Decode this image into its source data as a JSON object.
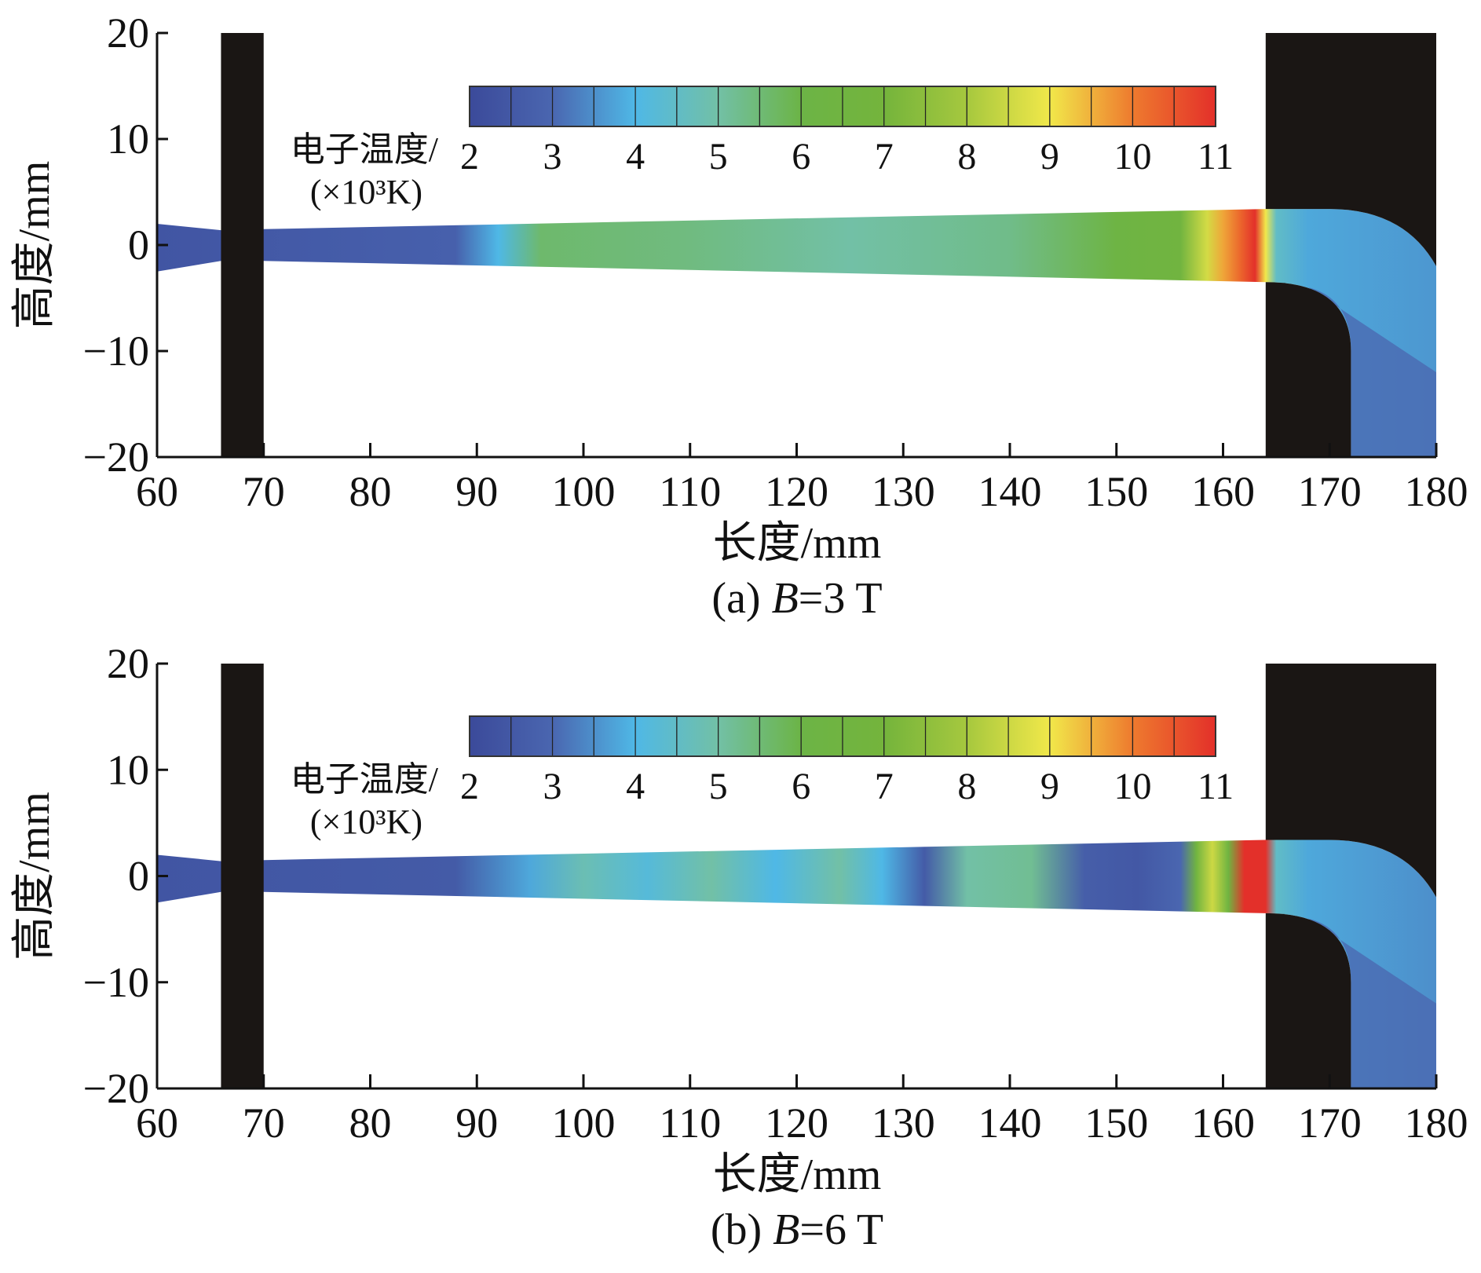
{
  "chart_data": [
    {
      "type": "heatmap",
      "panel_label": "(a) ",
      "caption_var": "B",
      "caption_rest": "=3 T",
      "xlabel": "长度/mm",
      "ylabel": "高度/mm",
      "xlim": [
        60,
        180
      ],
      "ylim": [
        -20,
        20
      ],
      "xticks": [
        "60",
        "70",
        "80",
        "90",
        "100",
        "110",
        "120",
        "130",
        "140",
        "150",
        "160",
        "170",
        "180"
      ],
      "yticks": [
        "20",
        "10",
        "0",
        "−10",
        "−20"
      ],
      "colorbar": {
        "label_line1": "电子温度/",
        "label_line2": "(×10³K)",
        "ticks": [
          "2",
          "3",
          "4",
          "5",
          "6",
          "7",
          "8",
          "9",
          "10",
          "11"
        ],
        "range": [
          2,
          11
        ]
      },
      "electrodes": [
        {
          "x": [
            66,
            70
          ]
        },
        {
          "x": [
            164,
            180
          ]
        }
      ],
      "temperature_profile": {
        "x": [
          60,
          88,
          92,
          96,
          110,
          125,
          140,
          150,
          156,
          158.5,
          160,
          161.5,
          163,
          164,
          165,
          168,
          180
        ],
        "T": [
          2.4,
          2.8,
          4.0,
          5.6,
          5.4,
          5.0,
          5.3,
          6.2,
          6.6,
          8.6,
          9.6,
          10.2,
          11.0,
          9.0,
          4.5,
          3.8,
          3.6
        ]
      }
    },
    {
      "type": "heatmap",
      "panel_label": "(b) ",
      "caption_var": "B",
      "caption_rest": "=6 T",
      "xlabel": "长度/mm",
      "ylabel": "高度/mm",
      "xlim": [
        60,
        180
      ],
      "ylim": [
        -20,
        20
      ],
      "xticks": [
        "60",
        "70",
        "80",
        "90",
        "100",
        "110",
        "120",
        "130",
        "140",
        "150",
        "160",
        "170",
        "180"
      ],
      "yticks": [
        "20",
        "10",
        "0",
        "−10",
        "−20"
      ],
      "colorbar": {
        "label_line1": "电子温度/",
        "label_line2": "(×10³K)",
        "ticks": [
          "2",
          "3",
          "4",
          "5",
          "6",
          "7",
          "8",
          "9",
          "10",
          "11"
        ],
        "range": [
          2,
          11
        ]
      },
      "electrodes": [
        {
          "x": [
            66,
            70
          ]
        },
        {
          "x": [
            164,
            180
          ]
        }
      ],
      "temperature_profile": {
        "x": [
          60,
          88,
          95,
          100,
          106,
          112,
          118,
          124,
          128,
          132,
          136,
          142,
          147,
          152,
          156,
          157.5,
          159,
          160.5,
          162,
          164,
          165,
          168,
          180
        ],
        "T": [
          2.4,
          2.6,
          3.8,
          4.8,
          4.2,
          5.0,
          4.0,
          5.0,
          4.0,
          2.6,
          5.0,
          5.2,
          2.7,
          2.5,
          3.0,
          6.6,
          8.5,
          6.5,
          11.0,
          11.0,
          4.5,
          3.8,
          3.5
        ]
      }
    }
  ]
}
